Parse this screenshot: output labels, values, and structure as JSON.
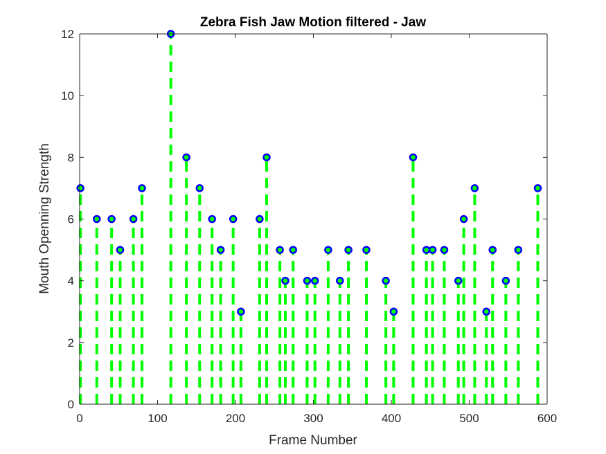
{
  "chart_data": {
    "type": "stem",
    "title": "Zebra Fish Jaw Motion filtered - Jaw",
    "xlabel": "Frame Number",
    "ylabel": "Mouth Openning Strength",
    "xlim": [
      0,
      600
    ],
    "ylim": [
      0,
      12
    ],
    "xticks": [
      0,
      100,
      200,
      300,
      400,
      500,
      600
    ],
    "yticks": [
      0,
      2,
      4,
      6,
      8,
      10,
      12
    ],
    "grid": false,
    "stem_color": "#00ff00",
    "stem_style": "dashed",
    "marker_color": "#0000ff",
    "points": [
      {
        "x": 1,
        "y": 7
      },
      {
        "x": 22,
        "y": 6
      },
      {
        "x": 41,
        "y": 6
      },
      {
        "x": 52,
        "y": 5
      },
      {
        "x": 69,
        "y": 6
      },
      {
        "x": 80,
        "y": 7
      },
      {
        "x": 117,
        "y": 12
      },
      {
        "x": 137,
        "y": 8
      },
      {
        "x": 154,
        "y": 7
      },
      {
        "x": 170,
        "y": 6
      },
      {
        "x": 181,
        "y": 5
      },
      {
        "x": 197,
        "y": 6
      },
      {
        "x": 207,
        "y": 3
      },
      {
        "x": 231,
        "y": 6
      },
      {
        "x": 240,
        "y": 8
      },
      {
        "x": 257,
        "y": 5
      },
      {
        "x": 264,
        "y": 4
      },
      {
        "x": 274,
        "y": 5
      },
      {
        "x": 292,
        "y": 4
      },
      {
        "x": 302,
        "y": 4
      },
      {
        "x": 319,
        "y": 5
      },
      {
        "x": 334,
        "y": 4
      },
      {
        "x": 345,
        "y": 5
      },
      {
        "x": 368,
        "y": 5
      },
      {
        "x": 393,
        "y": 4
      },
      {
        "x": 403,
        "y": 3
      },
      {
        "x": 428,
        "y": 8
      },
      {
        "x": 445,
        "y": 5
      },
      {
        "x": 453,
        "y": 5
      },
      {
        "x": 468,
        "y": 5
      },
      {
        "x": 486,
        "y": 4
      },
      {
        "x": 493,
        "y": 6
      },
      {
        "x": 507,
        "y": 7
      },
      {
        "x": 522,
        "y": 3
      },
      {
        "x": 530,
        "y": 5
      },
      {
        "x": 547,
        "y": 4
      },
      {
        "x": 563,
        "y": 5
      },
      {
        "x": 588,
        "y": 7
      }
    ]
  }
}
